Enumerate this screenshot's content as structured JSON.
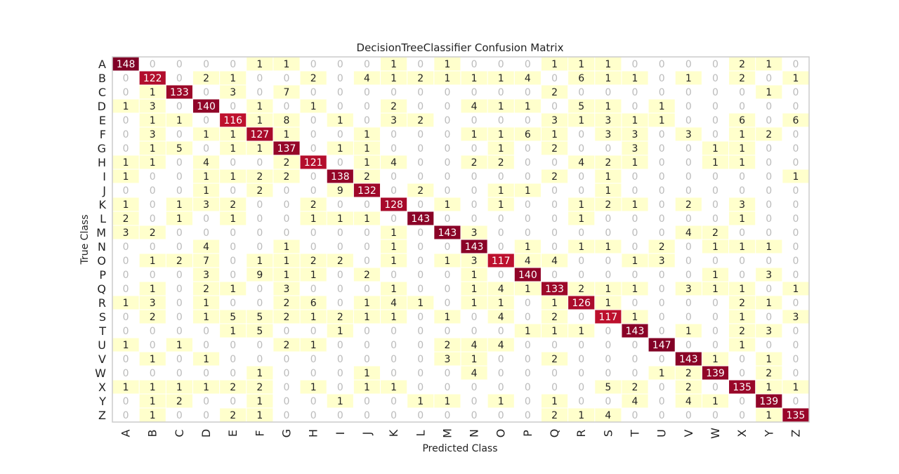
{
  "chart_data": {
    "type": "heatmap",
    "title": "DecisionTreeClassifier Confusion Matrix",
    "xlabel": "Predicted Class",
    "ylabel": "True Class",
    "x_categories": [
      "A",
      "B",
      "C",
      "D",
      "E",
      "F",
      "G",
      "H",
      "I",
      "J",
      "K",
      "L",
      "M",
      "N",
      "O",
      "P",
      "Q",
      "R",
      "S",
      "T",
      "U",
      "V",
      "W",
      "X",
      "Y",
      "Z"
    ],
    "y_categories": [
      "A",
      "B",
      "C",
      "D",
      "E",
      "F",
      "G",
      "H",
      "I",
      "J",
      "K",
      "L",
      "M",
      "N",
      "O",
      "P",
      "Q",
      "R",
      "S",
      "T",
      "U",
      "V",
      "W",
      "X",
      "Y",
      "Z"
    ],
    "matrix": [
      [
        148,
        0,
        0,
        0,
        0,
        1,
        1,
        0,
        0,
        0,
        1,
        0,
        1,
        0,
        0,
        0,
        1,
        1,
        1,
        0,
        0,
        0,
        0,
        2,
        1,
        0
      ],
      [
        0,
        122,
        0,
        2,
        1,
        0,
        0,
        2,
        0,
        4,
        1,
        2,
        1,
        1,
        1,
        4,
        0,
        6,
        1,
        1,
        0,
        1,
        0,
        2,
        0,
        1
      ],
      [
        0,
        1,
        133,
        0,
        3,
        0,
        7,
        0,
        0,
        0,
        0,
        0,
        0,
        0,
        0,
        0,
        2,
        0,
        0,
        0,
        0,
        0,
        0,
        0,
        1,
        0
      ],
      [
        1,
        3,
        0,
        140,
        0,
        1,
        0,
        1,
        0,
        0,
        2,
        0,
        0,
        4,
        1,
        1,
        0,
        5,
        1,
        0,
        1,
        0,
        0,
        0,
        0,
        0
      ],
      [
        0,
        1,
        1,
        0,
        116,
        1,
        8,
        0,
        1,
        0,
        3,
        2,
        0,
        0,
        0,
        0,
        3,
        1,
        3,
        1,
        1,
        0,
        0,
        6,
        0,
        6
      ],
      [
        0,
        3,
        0,
        1,
        1,
        127,
        1,
        0,
        0,
        1,
        0,
        0,
        0,
        1,
        1,
        6,
        1,
        0,
        3,
        3,
        0,
        3,
        0,
        1,
        2,
        0
      ],
      [
        0,
        1,
        5,
        0,
        1,
        1,
        137,
        0,
        1,
        1,
        0,
        0,
        0,
        0,
        1,
        0,
        2,
        0,
        0,
        3,
        0,
        0,
        1,
        1,
        0,
        0
      ],
      [
        1,
        1,
        0,
        4,
        0,
        0,
        2,
        121,
        0,
        1,
        4,
        0,
        0,
        2,
        2,
        0,
        0,
        4,
        2,
        1,
        0,
        0,
        1,
        1,
        0,
        0
      ],
      [
        1,
        0,
        0,
        1,
        1,
        2,
        2,
        0,
        138,
        2,
        0,
        0,
        0,
        0,
        0,
        0,
        2,
        0,
        1,
        0,
        0,
        0,
        0,
        0,
        0,
        1
      ],
      [
        0,
        0,
        0,
        1,
        0,
        2,
        0,
        0,
        9,
        132,
        0,
        2,
        0,
        0,
        1,
        1,
        0,
        0,
        1,
        0,
        0,
        0,
        0,
        0,
        0,
        0
      ],
      [
        1,
        0,
        1,
        3,
        2,
        0,
        0,
        2,
        0,
        0,
        128,
        0,
        1,
        0,
        1,
        0,
        0,
        1,
        2,
        1,
        0,
        2,
        0,
        3,
        0,
        0
      ],
      [
        2,
        0,
        1,
        0,
        1,
        0,
        0,
        1,
        1,
        1,
        0,
        143,
        0,
        0,
        0,
        0,
        0,
        1,
        0,
        0,
        0,
        0,
        0,
        1,
        0,
        0
      ],
      [
        3,
        2,
        0,
        0,
        0,
        0,
        0,
        0,
        0,
        0,
        1,
        0,
        143,
        3,
        0,
        0,
        0,
        0,
        0,
        0,
        0,
        4,
        2,
        0,
        0,
        0
      ],
      [
        0,
        0,
        0,
        4,
        0,
        0,
        1,
        0,
        0,
        0,
        1,
        0,
        0,
        143,
        0,
        1,
        0,
        1,
        1,
        0,
        2,
        0,
        1,
        1,
        1,
        0
      ],
      [
        0,
        1,
        2,
        7,
        0,
        1,
        1,
        2,
        2,
        0,
        1,
        0,
        1,
        3,
        117,
        4,
        4,
        0,
        0,
        1,
        3,
        0,
        0,
        0,
        0,
        0
      ],
      [
        0,
        0,
        0,
        3,
        0,
        9,
        1,
        1,
        0,
        2,
        0,
        0,
        0,
        1,
        0,
        140,
        0,
        0,
        0,
        0,
        0,
        0,
        1,
        0,
        3,
        0
      ],
      [
        0,
        1,
        0,
        2,
        1,
        0,
        3,
        0,
        0,
        0,
        1,
        0,
        0,
        1,
        4,
        1,
        133,
        2,
        1,
        1,
        0,
        3,
        1,
        1,
        0,
        1
      ],
      [
        1,
        3,
        0,
        1,
        0,
        0,
        2,
        6,
        0,
        1,
        4,
        1,
        0,
        1,
        1,
        0,
        1,
        126,
        1,
        0,
        0,
        0,
        0,
        2,
        1,
        0
      ],
      [
        0,
        2,
        0,
        1,
        5,
        5,
        2,
        1,
        2,
        1,
        1,
        0,
        1,
        0,
        4,
        0,
        2,
        0,
        117,
        1,
        0,
        0,
        0,
        1,
        0,
        3
      ],
      [
        0,
        0,
        0,
        0,
        1,
        5,
        0,
        0,
        1,
        0,
        0,
        0,
        0,
        0,
        0,
        1,
        1,
        1,
        0,
        143,
        0,
        1,
        0,
        2,
        3,
        0
      ],
      [
        1,
        0,
        1,
        0,
        0,
        0,
        2,
        1,
        0,
        0,
        0,
        0,
        2,
        4,
        4,
        0,
        0,
        0,
        0,
        0,
        147,
        0,
        0,
        1,
        0,
        0
      ],
      [
        0,
        1,
        0,
        1,
        0,
        0,
        0,
        0,
        0,
        0,
        0,
        0,
        3,
        1,
        0,
        0,
        2,
        0,
        0,
        0,
        0,
        143,
        1,
        0,
        1,
        0
      ],
      [
        0,
        0,
        0,
        0,
        0,
        1,
        0,
        0,
        0,
        1,
        0,
        0,
        0,
        4,
        0,
        0,
        0,
        0,
        0,
        0,
        1,
        2,
        139,
        0,
        2,
        0
      ],
      [
        1,
        1,
        1,
        1,
        2,
        2,
        0,
        1,
        0,
        1,
        1,
        0,
        0,
        0,
        0,
        0,
        0,
        0,
        5,
        2,
        0,
        2,
        0,
        135,
        1,
        1
      ],
      [
        0,
        1,
        2,
        0,
        0,
        1,
        0,
        0,
        1,
        0,
        0,
        1,
        1,
        0,
        1,
        0,
        1,
        0,
        0,
        4,
        0,
        4,
        1,
        0,
        139,
        0
      ],
      [
        0,
        1,
        0,
        0,
        2,
        1,
        0,
        0,
        0,
        0,
        0,
        0,
        0,
        0,
        0,
        0,
        2,
        1,
        4,
        0,
        0,
        0,
        0,
        0,
        1,
        135
      ]
    ],
    "grid": false,
    "colors": {
      "zero_text": "#bbbbbb",
      "low_cell": "#ffffcc",
      "mid_cell": "#c0112d",
      "high_cell": "#800026",
      "dark_text": "#222222",
      "light_text": "#ffffff",
      "frame": "#cccccc"
    }
  }
}
